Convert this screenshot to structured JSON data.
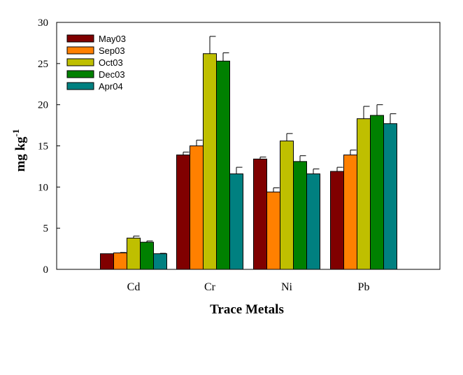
{
  "chart_data": {
    "type": "bar",
    "xlabel": "Trace Metals",
    "ylabel_main": "mg kg",
    "ylabel_sup": "-1",
    "categories": [
      "Cd",
      "Cr",
      "Ni",
      "Pb"
    ],
    "ylim": [
      0,
      30
    ],
    "yticks": [
      0,
      5,
      10,
      15,
      20,
      25,
      30
    ],
    "legend_position": "top-left",
    "grid": false,
    "series": [
      {
        "name": "May03",
        "color": "#800000",
        "values": [
          1.9,
          13.9,
          13.4,
          11.9
        ],
        "errors": [
          0.0,
          0.35,
          0.25,
          0.5
        ]
      },
      {
        "name": "Sep03",
        "color": "#ff8000",
        "values": [
          2.0,
          15.0,
          9.4,
          13.9
        ],
        "errors": [
          0.05,
          0.7,
          0.5,
          0.6
        ]
      },
      {
        "name": "Oct03",
        "color": "#bfbf00",
        "values": [
          3.8,
          26.2,
          15.6,
          18.3
        ],
        "errors": [
          0.25,
          2.1,
          0.9,
          1.5
        ]
      },
      {
        "name": "Dec03",
        "color": "#008000",
        "values": [
          3.3,
          25.3,
          13.1,
          18.7
        ],
        "errors": [
          0.15,
          1.0,
          0.7,
          1.3
        ]
      },
      {
        "name": "Apr04",
        "color": "#008080",
        "values": [
          1.9,
          11.6,
          11.6,
          17.7
        ],
        "errors": [
          0.05,
          0.8,
          0.6,
          1.2
        ]
      }
    ]
  }
}
